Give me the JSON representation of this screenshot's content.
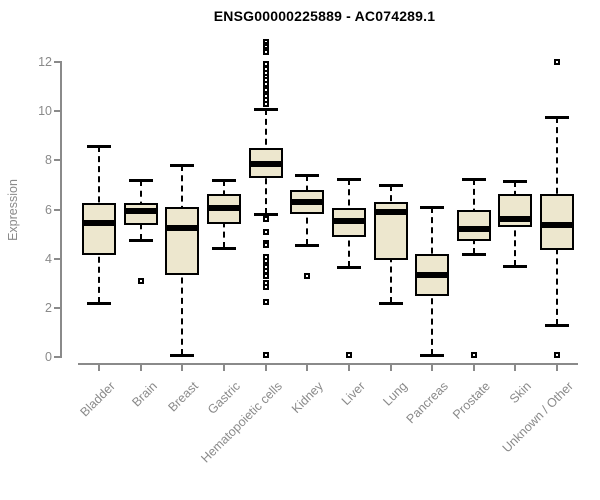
{
  "colors": {
    "box_fill": "#EDE7CE",
    "box_border": "#000000",
    "axis": "#8a8a8a",
    "tick_text": "#8a8a8a",
    "title_text": "#000000",
    "background": "#ffffff"
  },
  "chart_data": {
    "type": "box",
    "title": "ENSG00000225889 - AC074289.1",
    "xlabel": "",
    "ylabel": "Expression",
    "ylim": [
      0,
      12
    ],
    "yticks": [
      0,
      2,
      4,
      6,
      8,
      10,
      12
    ],
    "grid": false,
    "legend": false,
    "categories": [
      "Bladder",
      "Brain",
      "Breast",
      "Gastric",
      "Hematopoietic cells",
      "Kidney",
      "Liver",
      "Lung",
      "Pancreas",
      "Prostate",
      "Skin",
      "Unknown / Other"
    ],
    "boxes": [
      {
        "category": "Bladder",
        "whisker_low": 2.2,
        "q1": 4.15,
        "median": 5.45,
        "q3": 6.25,
        "whisker_high": 8.6,
        "outliers": []
      },
      {
        "category": "Brain",
        "whisker_low": 4.75,
        "q1": 5.35,
        "median": 5.95,
        "q3": 6.25,
        "whisker_high": 7.2,
        "outliers": [
          3.1
        ]
      },
      {
        "category": "Breast",
        "whisker_low": 0.1,
        "q1": 3.35,
        "median": 5.25,
        "q3": 6.1,
        "whisker_high": 7.8,
        "outliers": []
      },
      {
        "category": "Gastric",
        "whisker_low": 4.45,
        "q1": 5.4,
        "median": 6.05,
        "q3": 6.65,
        "whisker_high": 7.2,
        "outliers": []
      },
      {
        "category": "Hematopoietic cells",
        "whisker_low": 5.8,
        "q1": 7.3,
        "median": 7.85,
        "q3": 8.5,
        "whisker_high": 10.1,
        "outliers": [
          12.8,
          12.7,
          12.6,
          12.5,
          12.4,
          11.9,
          11.7,
          11.55,
          11.4,
          11.25,
          11.1,
          10.95,
          10.85,
          10.6,
          10.45,
          10.3,
          5.6,
          5.1,
          4.65,
          4.55,
          4.05,
          3.9,
          3.65,
          3.5,
          3.3,
          3.0,
          2.85,
          2.25,
          0.1
        ]
      },
      {
        "category": "Kidney",
        "whisker_low": 4.55,
        "q1": 5.8,
        "median": 6.3,
        "q3": 6.8,
        "whisker_high": 7.4,
        "outliers": [
          3.3
        ]
      },
      {
        "category": "Liver",
        "whisker_low": 3.65,
        "q1": 4.9,
        "median": 5.55,
        "q3": 6.05,
        "whisker_high": 7.25,
        "outliers": [
          0.1
        ]
      },
      {
        "category": "Lung",
        "whisker_low": 2.2,
        "q1": 3.95,
        "median": 5.9,
        "q3": 6.3,
        "whisker_high": 7.0,
        "outliers": []
      },
      {
        "category": "Pancreas",
        "whisker_low": 0.1,
        "q1": 2.5,
        "median": 3.35,
        "q3": 4.2,
        "whisker_high": 6.1,
        "outliers": []
      },
      {
        "category": "Prostate",
        "whisker_low": 4.2,
        "q1": 4.7,
        "median": 5.2,
        "q3": 6.0,
        "whisker_high": 7.25,
        "outliers": [
          0.1
        ]
      },
      {
        "category": "Skin",
        "whisker_low": 3.7,
        "q1": 5.3,
        "median": 5.6,
        "q3": 6.65,
        "whisker_high": 7.15,
        "outliers": []
      },
      {
        "category": "Unknown / Other",
        "whisker_low": 1.3,
        "q1": 4.35,
        "median": 5.35,
        "q3": 6.65,
        "whisker_high": 9.75,
        "outliers": [
          12.0,
          0.1
        ]
      }
    ]
  }
}
